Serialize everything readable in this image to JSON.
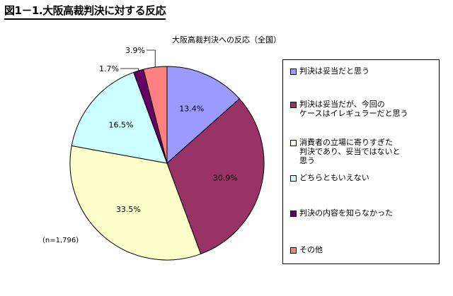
{
  "figure_title": "図1－1.大阪高裁判決に対する反応",
  "chart_data": {
    "type": "pie",
    "title": "大阪高裁判決への反応（全国）",
    "note": "(n=1,796)",
    "legend_position": "right",
    "slices": [
      {
        "label": "判決は妥当だと思う",
        "value": 13.4,
        "display": "13.4%",
        "color": "#9b9bff"
      },
      {
        "label": "判決は妥当だが、今回の\nケースはイレギュラーだと思う",
        "value": 30.9,
        "display": "30.9%",
        "color": "#993366"
      },
      {
        "label": "消費者の立場に寄りすぎた\n判決であり、妥当ではないと\n思う",
        "value": 33.5,
        "display": "33.5%",
        "color": "#ffffcc"
      },
      {
        "label": "どちらともいえない",
        "value": 16.5,
        "display": "16.5%",
        "color": "#ccffff"
      },
      {
        "label": "判決の内容を知らなかった",
        "value": 1.7,
        "display": "1.7%",
        "color": "#660066"
      },
      {
        "label": "その他",
        "value": 3.9,
        "display": "3.9%",
        "color": "#ff8080"
      }
    ]
  }
}
